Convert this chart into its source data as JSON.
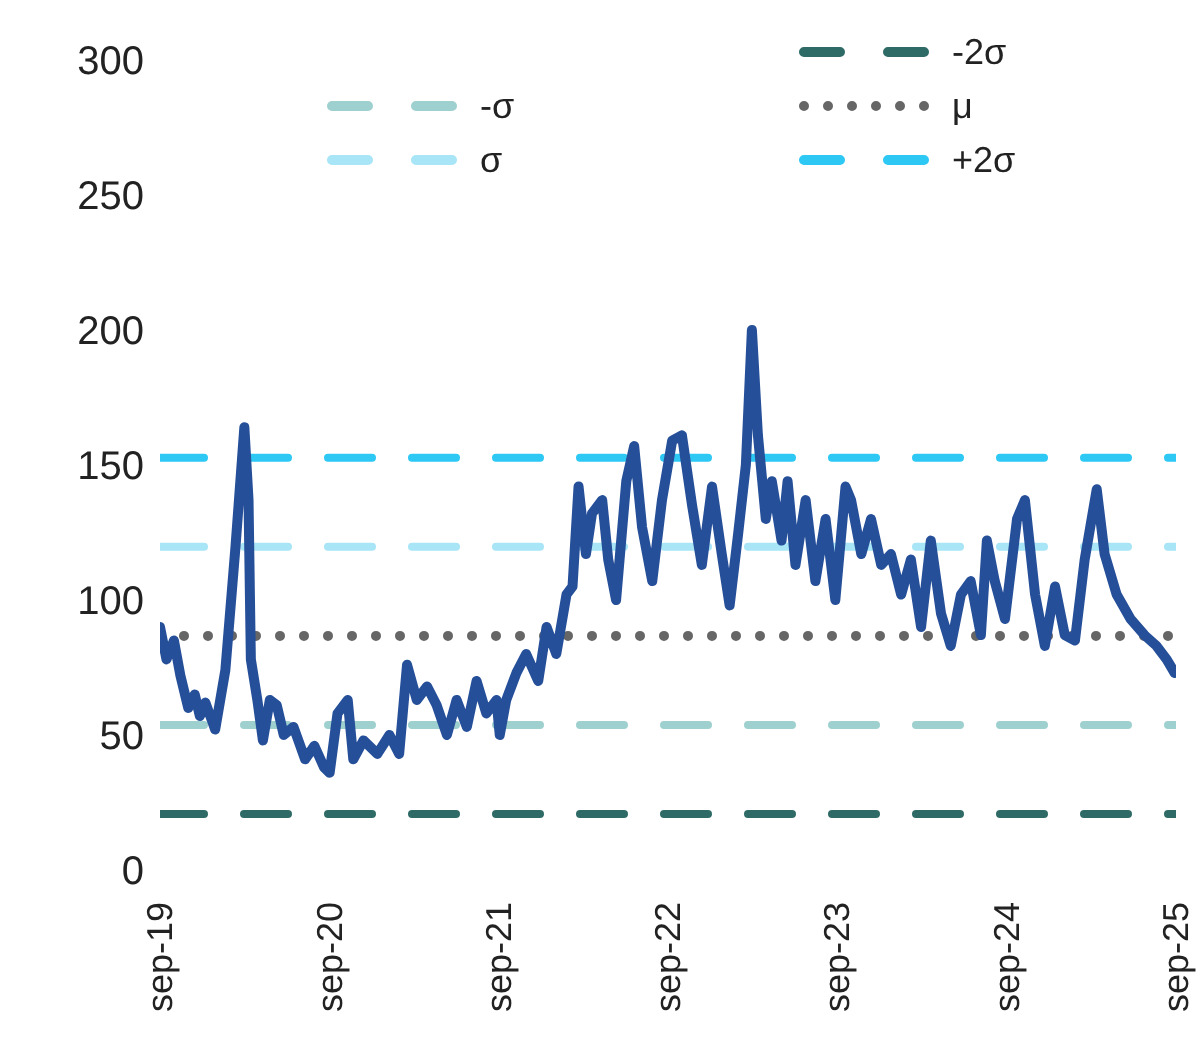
{
  "chart_data": {
    "type": "line",
    "x": [
      "2019-09-01",
      "2019-09-15",
      "2019-10-01",
      "2019-10-15",
      "2019-11-01",
      "2019-11-15",
      "2019-11-26",
      "2019-12-08",
      "2019-12-29",
      "2020-01-20",
      "2020-02-11",
      "2020-03-01",
      "2020-03-10",
      "2020-03-15",
      "2020-03-29",
      "2020-04-10",
      "2020-04-25",
      "2020-05-10",
      "2020-05-25",
      "2020-06-15",
      "2020-07-10",
      "2020-07-30",
      "2020-08-20",
      "2020-09-01",
      "2020-09-18",
      "2020-10-10",
      "2020-10-22",
      "2020-11-13",
      "2020-12-13",
      "2021-01-08",
      "2021-01-29",
      "2021-02-15",
      "2021-03-08",
      "2021-03-30",
      "2021-04-20",
      "2021-05-12",
      "2021-06-02",
      "2021-06-24",
      "2021-07-15",
      "2021-08-05",
      "2021-08-27",
      "2021-09-03",
      "2021-09-17",
      "2021-10-09",
      "2021-10-30",
      "2021-11-25",
      "2021-12-13",
      "2022-01-03",
      "2022-01-25",
      "2022-02-07",
      "2022-02-20",
      "2022-03-08",
      "2022-03-21",
      "2022-04-12",
      "2022-04-25",
      "2022-05-12",
      "2022-06-03",
      "2022-06-20",
      "2022-07-07",
      "2022-07-29",
      "2022-08-19",
      "2022-09-10",
      "2022-10-01",
      "2022-10-23",
      "2022-11-13",
      "2022-12-05",
      "2022-12-26",
      "2023-01-12",
      "2023-01-30",
      "2023-02-16",
      "2023-03-01",
      "2023-03-14",
      "2023-03-31",
      "2023-04-13",
      "2023-05-04",
      "2023-05-17",
      "2023-06-03",
      "2023-06-25",
      "2023-07-16",
      "2023-08-07",
      "2023-08-28",
      "2023-09-19",
      "2023-10-01",
      "2023-10-23",
      "2023-11-13",
      "2023-12-05",
      "2023-12-26",
      "2024-01-17",
      "2024-02-07",
      "2024-02-29",
      "2024-03-21",
      "2024-04-12",
      "2024-05-03",
      "2024-05-25",
      "2024-06-15",
      "2024-07-07",
      "2024-07-20",
      "2024-08-06",
      "2024-08-28",
      "2024-09-23",
      "2024-10-10",
      "2024-11-01",
      "2024-11-22",
      "2024-12-14",
      "2025-01-04",
      "2025-01-26",
      "2025-02-16",
      "2025-03-14",
      "2025-03-31",
      "2025-04-26",
      "2025-05-26",
      "2025-06-25",
      "2025-07-21",
      "2025-08-12",
      "2025-08-29"
    ],
    "series": [
      {
        "color": "#264f99",
        "values": [
          90,
          78,
          85,
          72,
          60,
          65,
          57,
          62,
          52,
          74,
          120,
          164,
          137,
          78,
          63,
          48,
          63,
          61,
          50,
          53,
          41,
          46,
          38,
          36,
          58,
          63,
          41,
          48,
          43,
          50,
          43,
          76,
          63,
          68,
          61,
          50,
          63,
          53,
          70,
          58,
          63,
          50,
          63,
          73,
          80,
          70,
          90,
          80,
          102,
          105,
          142,
          117,
          132,
          137,
          115,
          100,
          144,
          157,
          127,
          107,
          137,
          159,
          161,
          135,
          113,
          142,
          117,
          98,
          124,
          150,
          200,
          161,
          130,
          144,
          122,
          144,
          113,
          137,
          107,
          130,
          100,
          142,
          137,
          117,
          130,
          113,
          117,
          102,
          115,
          90,
          122,
          95,
          83,
          102,
          107,
          87,
          122,
          107,
          93,
          130,
          137,
          102,
          83,
          105,
          87,
          85,
          115,
          141,
          117,
          102,
          93,
          87,
          83,
          78,
          73
        ]
      }
    ],
    "xlim": [
      "2019-09-01",
      "2025-09-01"
    ],
    "xticks": [
      {
        "value": "2019-09-01",
        "label": "sep-19"
      },
      {
        "value": "2020-09-01",
        "label": "sep-20"
      },
      {
        "value": "2021-09-01",
        "label": "sep-21"
      },
      {
        "value": "2022-09-01",
        "label": "sep-22"
      },
      {
        "value": "2023-09-01",
        "label": "sep-23"
      },
      {
        "value": "2024-09-01",
        "label": "sep-24"
      },
      {
        "value": "2025-09-01",
        "label": "sep-25"
      }
    ],
    "ylim": [
      0,
      300
    ],
    "yticks": [
      0,
      50,
      100,
      150,
      200,
      250,
      300
    ],
    "ref_lines": [
      {
        "axis": "y",
        "value": 20.7,
        "label": "-2σ",
        "color": "#2f6b66",
        "line_style": "dashed"
      },
      {
        "axis": "y",
        "value": 53.7,
        "label": "-σ",
        "color": "#9fd0d0",
        "line_style": "dashed"
      },
      {
        "axis": "y",
        "value": 86.7,
        "label": "μ",
        "color": "#666666",
        "line_style": "dotted"
      },
      {
        "axis": "y",
        "value": 119.7,
        "label": "σ",
        "color": "#a8e6f7",
        "line_style": "dashed"
      },
      {
        "axis": "y",
        "value": 152.7,
        "label": "+2σ",
        "color": "#2ec8f5",
        "line_style": "dashed"
      }
    ],
    "grid": false,
    "legend": "top",
    "marker": "none",
    "line_style": "solid"
  }
}
